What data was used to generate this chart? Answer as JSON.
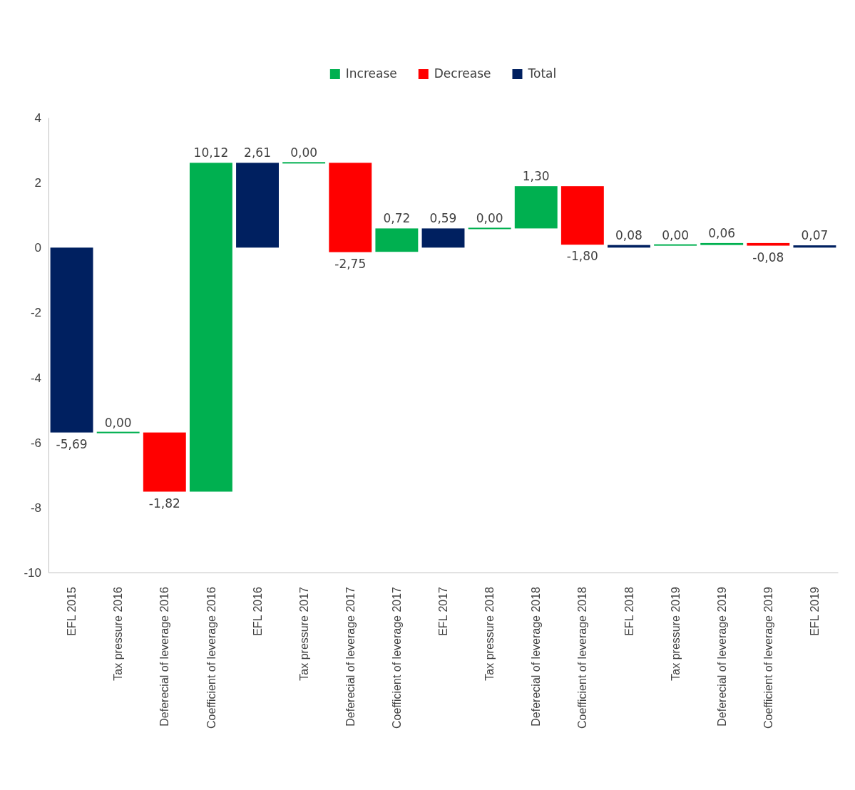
{
  "chart_data": {
    "type": "bar",
    "categories": [
      "EFL 2015",
      "Tax pressure 2016",
      "Deferecial of leverage 2016",
      "Coefficient of leverage 2016",
      "EFL 2016",
      "Tax pressure 2017",
      "Deferecial of leverage 2017",
      "Coefficient of leverage 2017",
      "EFL 2017",
      "Tax pressure 2018",
      "Deferecial of leverage 2018",
      "Coefficient of leverage 2018",
      "EFL 2018",
      "Tax pressure 2019",
      "Deferecial of leverage 2019",
      "Coefficient of leverage 2019",
      "EFL 2019"
    ],
    "series": [
      {
        "name": "Increase",
        "color": "#00b050",
        "values": [
          null,
          0,
          null,
          10.12,
          null,
          0,
          null,
          0.72,
          null,
          0,
          1.3,
          null,
          null,
          0,
          0.06,
          null,
          null
        ],
        "base": [
          null,
          -5.69,
          null,
          -7.51,
          null,
          2.61,
          null,
          -0.13,
          null,
          0.59,
          0.59,
          null,
          null,
          0.08,
          0.08,
          null,
          null
        ],
        "value_labels": [
          null,
          "0,00",
          null,
          "10,12",
          null,
          "0,00",
          null,
          "0,72",
          null,
          "0,00",
          "1,30",
          null,
          null,
          "0,00",
          "0,06",
          null,
          null
        ]
      },
      {
        "name": "Decrease",
        "color": "#ff0000",
        "values": [
          null,
          null,
          -1.82,
          null,
          null,
          null,
          -2.75,
          null,
          null,
          null,
          null,
          -1.8,
          null,
          null,
          null,
          -0.08,
          null
        ],
        "base": [
          null,
          null,
          -5.69,
          null,
          null,
          null,
          2.61,
          null,
          null,
          null,
          null,
          1.89,
          null,
          null,
          null,
          0.14,
          null
        ],
        "value_labels": [
          null,
          null,
          "-1,82",
          null,
          null,
          null,
          "-2,75",
          null,
          null,
          null,
          null,
          "-1,80",
          null,
          null,
          null,
          "-0,08",
          null
        ]
      },
      {
        "name": "Total",
        "color": "#002060",
        "values": [
          -5.69,
          null,
          null,
          null,
          2.61,
          null,
          null,
          null,
          0.59,
          null,
          null,
          null,
          0.08,
          null,
          null,
          null,
          0.07
        ],
        "base": [
          0,
          null,
          null,
          null,
          0,
          null,
          null,
          null,
          0,
          null,
          null,
          null,
          0,
          null,
          null,
          null,
          0
        ],
        "value_labels": [
          "-5,69",
          null,
          null,
          null,
          "2,61",
          null,
          null,
          null,
          "0,59",
          null,
          null,
          null,
          "0,08",
          null,
          null,
          null,
          "0,07"
        ]
      }
    ],
    "ylim": [
      -10,
      4
    ],
    "yticks": [
      -10,
      -8,
      -6,
      -4,
      -2,
      0,
      2,
      4
    ],
    "legend": "top",
    "grid": false
  }
}
